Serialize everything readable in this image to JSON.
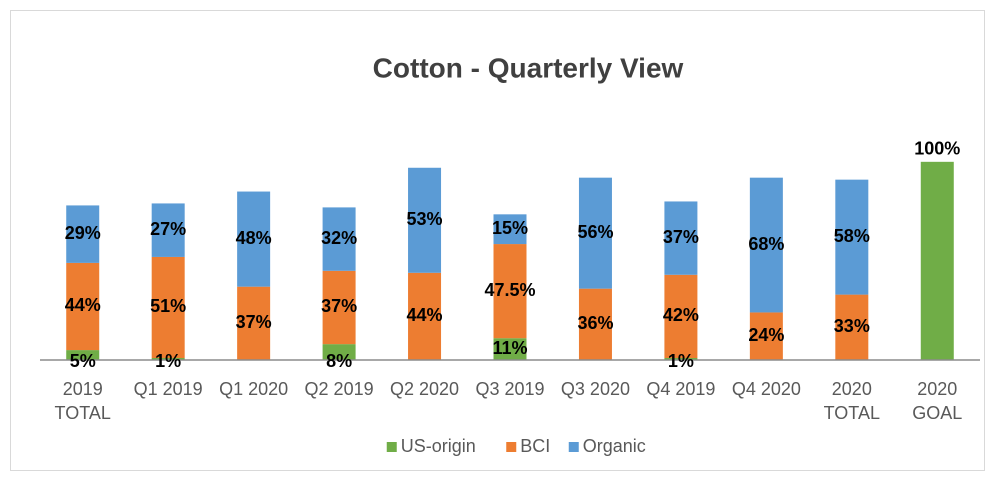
{
  "chart_data": {
    "type": "stacked_bar",
    "title": "Cotton - Quarterly View",
    "categories": [
      [
        "2019",
        "TOTAL"
      ],
      [
        "Q1 2019"
      ],
      [
        "Q1 2020"
      ],
      [
        "Q2 2019"
      ],
      [
        "Q2 2020"
      ],
      [
        "Q3 2019"
      ],
      [
        "Q3 2020"
      ],
      [
        "Q4 2019"
      ],
      [
        "Q4 2020"
      ],
      [
        "2020",
        "TOTAL"
      ],
      [
        "2020",
        "GOAL"
      ]
    ],
    "series": [
      {
        "name": "US-origin",
        "color": "#70ad47",
        "values": [
          5,
          1,
          null,
          8,
          null,
          11,
          null,
          1,
          null,
          null,
          100
        ],
        "value_labels": [
          "5%",
          "1%",
          null,
          "8%",
          null,
          "11%",
          null,
          "1%",
          null,
          null,
          "100%"
        ]
      },
      {
        "name": "BCI",
        "color": "#ed7d31",
        "values": [
          44,
          51,
          37,
          37,
          44,
          47.5,
          36,
          42,
          24,
          33,
          null
        ],
        "value_labels": [
          "44%",
          "51%",
          "37%",
          "37%",
          "44%",
          "47.5%",
          "36%",
          "42%",
          "24%",
          "33%",
          null
        ]
      },
      {
        "name": "Organic",
        "color": "#5b9bd5",
        "values": [
          29,
          27,
          48,
          32,
          53,
          15,
          56,
          37,
          68,
          58,
          null
        ],
        "value_labels": [
          "29%",
          "27%",
          "48%",
          "32%",
          "53%",
          "15%",
          "56%",
          "37%",
          "68%",
          "58%",
          null
        ]
      }
    ],
    "ylim": [
      0,
      110
    ],
    "legend": "bottom"
  }
}
